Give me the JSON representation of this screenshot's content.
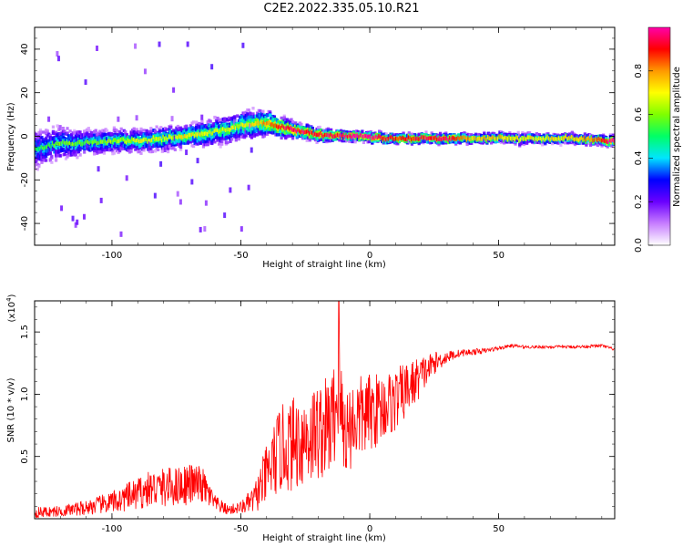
{
  "title": "C2E2.2022.335.05.10.R21",
  "chart_data": [
    {
      "type": "heatmap",
      "xlabel": "Height of straight line (km)",
      "ylabel": "Frequency (Hz)",
      "xlim": [
        -130,
        95
      ],
      "ylim": [
        -50,
        50
      ],
      "xticks": [
        -100,
        -50,
        0,
        50
      ],
      "yticks": [
        -40,
        -20,
        0,
        20,
        40
      ],
      "colorbar": {
        "label": "Normalized spectral amplitude",
        "range": [
          0.0,
          1.0
        ],
        "ticks": [
          "0.0",
          "0.2",
          "0.4",
          "0.6",
          "0.8"
        ],
        "tick_values": [
          0.0,
          0.2,
          0.4,
          0.6,
          0.8
        ],
        "colormap": [
          "#ffffff",
          "#c77dff",
          "#6a00ff",
          "#0000ff",
          "#00e5ff",
          "#00ff66",
          "#7fff00",
          "#ffff00",
          "#ff9900",
          "#ff0000",
          "#ff00aa"
        ]
      },
      "ridge": {
        "x": [
          -128,
          -120,
          -110,
          -100,
          -90,
          -80,
          -70,
          -60,
          -50,
          -40,
          -30,
          -20,
          -10,
          0,
          10,
          20,
          30,
          40,
          50,
          60,
          70,
          80,
          90,
          95
        ],
        "freq": [
          -6,
          -3,
          -3,
          -2,
          -2,
          -1,
          0,
          2,
          5,
          6,
          3,
          1,
          0,
          0,
          -1,
          -1,
          -1,
          -1,
          -1,
          -1,
          -1,
          -1,
          -2,
          -2
        ],
        "spread": [
          12,
          10,
          8,
          7,
          7,
          7,
          7,
          8,
          9,
          8,
          5,
          4,
          3,
          3,
          3,
          3,
          3,
          3,
          3,
          3,
          3,
          3,
          3,
          3
        ],
        "amplitude": [
          0.35,
          0.4,
          0.4,
          0.45,
          0.5,
          0.5,
          0.55,
          0.5,
          0.5,
          0.65,
          0.8,
          0.75,
          0.8,
          0.85,
          0.7,
          0.75,
          0.8,
          0.6,
          0.6,
          0.55,
          0.55,
          0.6,
          0.7,
          0.9
        ]
      }
    },
    {
      "type": "line",
      "xlabel": "Height of straight line (km)",
      "ylabel": "SNR (10 * v/v)",
      "multiplier": "(x10",
      "multiplier_exp": "4",
      "xlim": [
        -130,
        95
      ],
      "ylim": [
        0,
        17500
      ],
      "xticks": [
        -100,
        -50,
        0,
        50
      ],
      "yticks": [
        5000,
        10000,
        15000
      ],
      "ytick_labels": [
        "0.5",
        "1.0",
        "1.5"
      ],
      "series": [
        {
          "color": "#ff0000",
          "x": [
            -130,
            -120,
            -110,
            -100,
            -90,
            -85,
            -80,
            -75,
            -70,
            -65,
            -60,
            -55,
            -50,
            -45,
            -40,
            -35,
            -30,
            -25,
            -20,
            -15,
            -12,
            -10,
            -5,
            0,
            5,
            10,
            15,
            20,
            25,
            30,
            35,
            40,
            45,
            50,
            55,
            60,
            70,
            80,
            90,
            95
          ],
          "y": [
            500,
            600,
            900,
            1300,
            2000,
            2400,
            2500,
            2600,
            2800,
            2700,
            1200,
            700,
            900,
            1500,
            3500,
            5500,
            6000,
            6500,
            7000,
            7500,
            10000,
            7000,
            8000,
            8500,
            9000,
            9500,
            10500,
            11500,
            12500,
            13000,
            13300,
            13400,
            13500,
            13700,
            13900,
            13800,
            13800,
            13800,
            13900,
            13600
          ],
          "noise": [
            450,
            450,
            600,
            900,
            1300,
            1500,
            1600,
            1600,
            1700,
            1500,
            700,
            400,
            500,
            1100,
            2500,
            3500,
            3800,
            4000,
            4000,
            4200,
            4500,
            3800,
            3500,
            3200,
            2800,
            2600,
            2200,
            1600,
            900,
            500,
            300,
            250,
            200,
            150,
            150,
            120,
            120,
            120,
            120,
            120
          ]
        }
      ]
    }
  ]
}
